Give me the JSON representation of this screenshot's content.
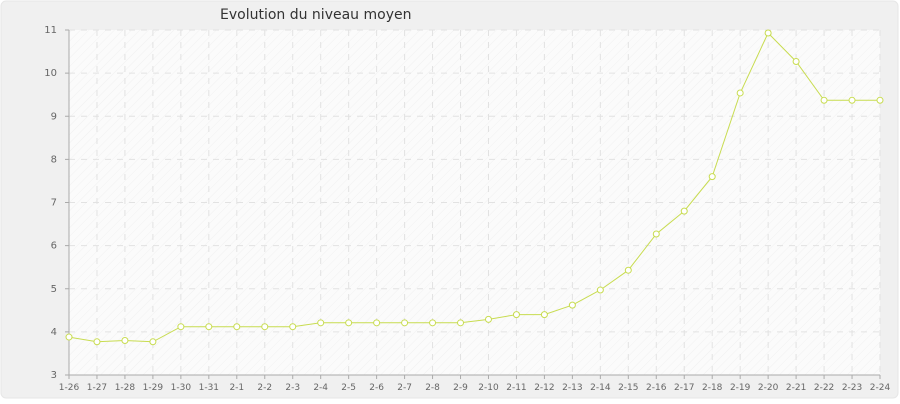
{
  "chart_data": {
    "type": "line",
    "title": "Evolution du niveau moyen",
    "xlabel": "",
    "ylabel": "",
    "categories": [
      "1-26",
      "1-27",
      "1-28",
      "1-29",
      "1-30",
      "1-31",
      "2-1",
      "2-2",
      "2-3",
      "2-4",
      "2-5",
      "2-6",
      "2-7",
      "2-8",
      "2-9",
      "2-10",
      "2-11",
      "2-12",
      "2-13",
      "2-14",
      "2-15",
      "2-16",
      "2-17",
      "2-18",
      "2-19",
      "2-20",
      "2-21",
      "2-22",
      "2-23",
      "2-24"
    ],
    "yticks": [
      "3",
      "4",
      "5",
      "6",
      "7",
      "8",
      "9",
      "10",
      "11"
    ],
    "ylim": [
      3,
      11
    ],
    "grid": true,
    "series": [
      {
        "color": "#c8dc50",
        "values": [
          3.88,
          3.77,
          3.8,
          3.77,
          4.12,
          4.12,
          4.12,
          4.12,
          4.12,
          4.21,
          4.21,
          4.21,
          4.21,
          4.21,
          4.21,
          4.29,
          4.4,
          4.4,
          4.62,
          4.97,
          5.43,
          6.27,
          6.8,
          7.6,
          9.54,
          10.93,
          10.27,
          9.37,
          9.37,
          9.37
        ]
      }
    ]
  }
}
